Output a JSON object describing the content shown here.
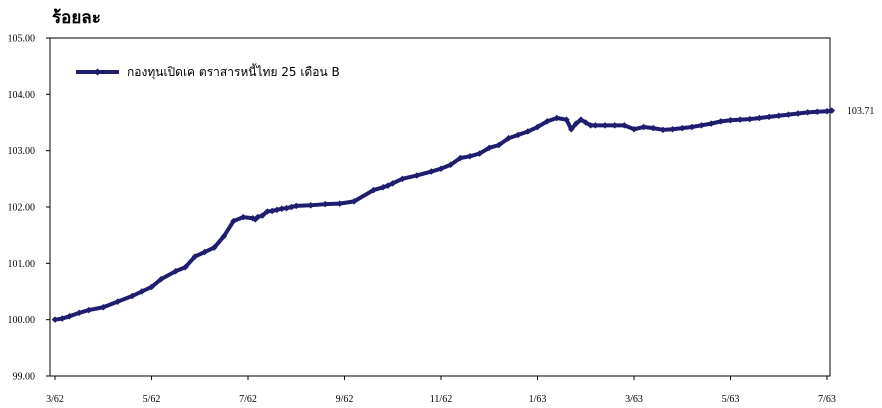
{
  "chart_data": {
    "type": "line",
    "ylabel": "ร้อยละ",
    "xlabel": "",
    "ylim": [
      99.0,
      105.0
    ],
    "y_ticks": [
      "99.00",
      "100.00",
      "101.00",
      "102.00",
      "103.00",
      "104.00",
      "105.00"
    ],
    "x_ticks": [
      "3/62",
      "5/62",
      "7/62",
      "9/62",
      "11/62",
      "1/63",
      "3/63",
      "5/63",
      "7/63"
    ],
    "grid": false,
    "legend_position": "top-left",
    "line_color": "#1f1d6e",
    "end_label": "103.71",
    "series": [
      {
        "name": "กองทุนเปิดเค ตราสารหนี้ไทย 25 เดือน B",
        "x": [
          0,
          0.15,
          0.3,
          0.5,
          0.7,
          1.0,
          1.3,
          1.6,
          1.8,
          2.0,
          2.2,
          2.5,
          2.7,
          2.9,
          3.1,
          3.3,
          3.5,
          3.7,
          3.9,
          4.1,
          4.15,
          4.2,
          4.3,
          4.4,
          4.5,
          4.6,
          4.7,
          4.8,
          4.9,
          5.0,
          5.3,
          5.6,
          5.9,
          6.2,
          6.6,
          6.8,
          6.9,
          7.0,
          7.2,
          7.5,
          7.8,
          8.0,
          8.2,
          8.4,
          8.6,
          8.8,
          9.0,
          9.2,
          9.4,
          9.6,
          9.8,
          10.0,
          10.2,
          10.4,
          10.6,
          10.7,
          10.8,
          10.9,
          11.0,
          11.1,
          11.2,
          11.4,
          11.6,
          11.8,
          12.0,
          12.2,
          12.4,
          12.6,
          12.8,
          13.0,
          13.2,
          13.4,
          13.6,
          13.8,
          14.0,
          14.2,
          14.4,
          14.6,
          14.8,
          15.0,
          15.2,
          15.4,
          15.6,
          15.8,
          16.0,
          16.1
        ],
        "values": [
          100.0,
          100.02,
          100.06,
          100.12,
          100.17,
          100.22,
          100.32,
          100.42,
          100.5,
          100.58,
          100.72,
          100.86,
          100.93,
          101.12,
          101.2,
          101.28,
          101.48,
          101.75,
          101.82,
          101.8,
          101.78,
          101.82,
          101.85,
          101.92,
          101.93,
          101.95,
          101.97,
          101.98,
          102.0,
          102.02,
          102.03,
          102.05,
          102.06,
          102.1,
          102.3,
          102.35,
          102.38,
          102.42,
          102.5,
          102.56,
          102.63,
          102.68,
          102.75,
          102.87,
          102.9,
          102.95,
          103.05,
          103.1,
          103.22,
          103.28,
          103.34,
          103.42,
          103.52,
          103.58,
          103.55,
          103.38,
          103.48,
          103.55,
          103.5,
          103.45,
          103.45,
          103.45,
          103.45,
          103.45,
          103.38,
          103.42,
          103.4,
          103.37,
          103.38,
          103.4,
          103.42,
          103.45,
          103.48,
          103.52,
          103.54,
          103.55,
          103.56,
          103.58,
          103.6,
          103.62,
          103.64,
          103.66,
          103.68,
          103.69,
          103.7,
          103.71
        ]
      }
    ]
  }
}
